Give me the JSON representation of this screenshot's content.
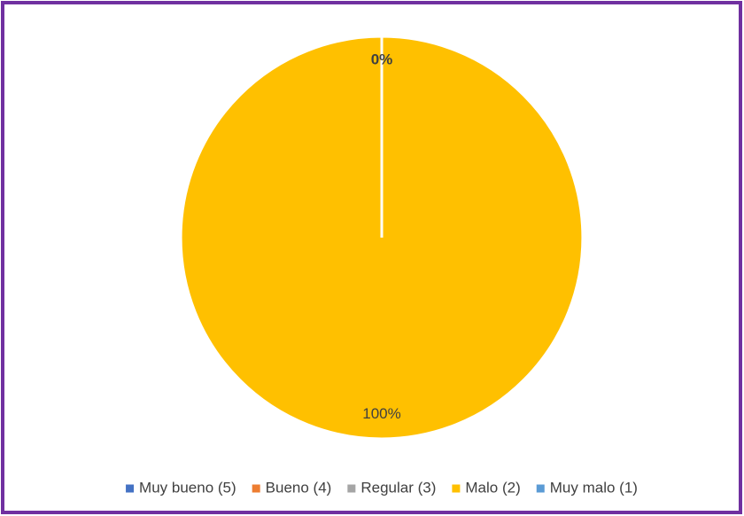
{
  "chart_data": {
    "type": "pie",
    "categories": [
      "Muy bueno (5)",
      "Bueno (4)",
      "Regular (3)",
      "Malo (2)",
      "Muy malo (1)"
    ],
    "values": [
      0,
      0,
      0,
      100,
      0
    ],
    "value_labels": [
      null,
      null,
      null,
      "100%",
      "0%"
    ],
    "colors": [
      "#4472c4",
      "#ed7d31",
      "#a5a5a5",
      "#ffc000",
      "#5b9bd5"
    ],
    "legend": "bottom"
  }
}
